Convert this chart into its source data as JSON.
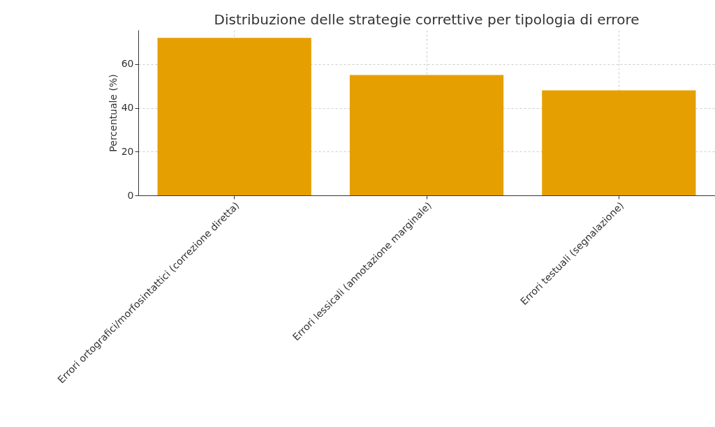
{
  "chart_data": {
    "type": "bar",
    "title": "Distribuzione delle strategie correttive per tipologia di errore",
    "ylabel": "Percentuale (%)",
    "categories": [
      "Errori ortografici/morfosintattici (correzione diretta)",
      "Errori lessicali (annotazione marginale)",
      "Errori testuali (segnalazione)"
    ],
    "values": [
      72,
      55,
      48
    ],
    "color": "#e69f00",
    "ylim": [
      0,
      75.6
    ],
    "yticks": [
      0,
      20,
      40,
      60
    ],
    "grid": true
  }
}
